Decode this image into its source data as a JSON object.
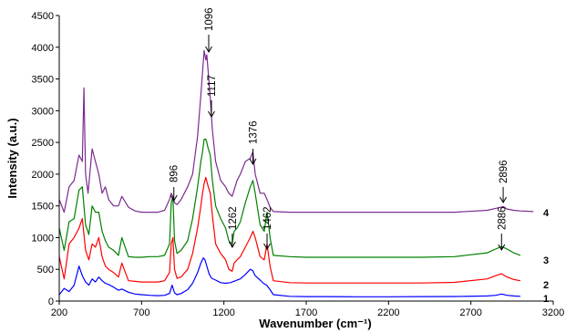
{
  "chart_data": {
    "type": "line",
    "title": "",
    "xlabel": "Wavenumber (cm⁻¹)",
    "ylabel": "Intensity (a.u.)",
    "xlim": [
      200,
      3200
    ],
    "ylim": [
      0,
      4500
    ],
    "xticks": [
      "200",
      "700",
      "1200",
      "1700",
      "2200",
      "2700",
      "3200"
    ],
    "yticks": [
      "0",
      "500",
      "1000",
      "1500",
      "2000",
      "2500",
      "3000",
      "3500",
      "4000",
      "4500"
    ],
    "grid": false,
    "legend": "none",
    "series": [
      {
        "name": "1",
        "color": "#0000ff",
        "x": [
          200,
          230,
          260,
          290,
          320,
          340,
          360,
          380,
          400,
          420,
          440,
          460,
          480,
          500,
          530,
          560,
          580,
          620,
          660,
          700,
          750,
          800,
          840,
          870,
          885,
          900,
          915,
          940,
          980,
          1010,
          1040,
          1060,
          1075,
          1085,
          1095,
          1110,
          1125,
          1150,
          1180,
          1210,
          1240,
          1260,
          1280,
          1300,
          1330,
          1360,
          1375,
          1390,
          1420,
          1440,
          1460,
          1480,
          1500,
          1600,
          1700,
          1800,
          2000,
          2200,
          2400,
          2600,
          2800,
          2850,
          2886,
          2920,
          2960,
          3000
        ],
        "y": [
          100,
          200,
          150,
          250,
          550,
          400,
          300,
          250,
          350,
          300,
          380,
          320,
          280,
          260,
          220,
          170,
          190,
          140,
          110,
          100,
          90,
          85,
          90,
          120,
          250,
          130,
          100,
          120,
          180,
          280,
          450,
          600,
          680,
          650,
          560,
          430,
          360,
          330,
          290,
          280,
          290,
          310,
          330,
          350,
          420,
          500,
          480,
          400,
          330,
          280,
          250,
          180,
          100,
          75,
          70,
          70,
          68,
          68,
          70,
          72,
          80,
          90,
          110,
          90,
          80,
          75
        ]
      },
      {
        "name": "2",
        "color": "#ff0000",
        "x": [
          200,
          230,
          260,
          290,
          320,
          340,
          360,
          380,
          400,
          420,
          440,
          460,
          480,
          500,
          530,
          560,
          580,
          620,
          660,
          700,
          750,
          800,
          840,
          870,
          880,
          890,
          900,
          915,
          940,
          980,
          1010,
          1040,
          1060,
          1070,
          1080,
          1090,
          1105,
          1117,
          1130,
          1150,
          1180,
          1210,
          1230,
          1250,
          1262,
          1280,
          1300,
          1330,
          1360,
          1376,
          1390,
          1420,
          1445,
          1462,
          1480,
          1500,
          1600,
          1700,
          1800,
          2000,
          2200,
          2400,
          2600,
          2800,
          2850,
          2886,
          2920,
          2960,
          3000
        ],
        "y": [
          700,
          350,
          900,
          1000,
          1150,
          1300,
          800,
          650,
          900,
          850,
          1000,
          700,
          550,
          500,
          450,
          380,
          600,
          320,
          310,
          300,
          300,
          300,
          320,
          450,
          900,
          1000,
          500,
          360,
          380,
          500,
          750,
          1150,
          1500,
          1700,
          1850,
          1950,
          1800,
          1700,
          1350,
          900,
          750,
          650,
          500,
          470,
          600,
          650,
          700,
          850,
          1000,
          1100,
          1000,
          700,
          650,
          900,
          550,
          320,
          290,
          285,
          285,
          285,
          285,
          285,
          295,
          350,
          400,
          430,
          380,
          340,
          320
        ]
      },
      {
        "name": "3",
        "color": "#008000",
        "x": [
          200,
          230,
          260,
          290,
          320,
          340,
          360,
          380,
          400,
          420,
          440,
          460,
          480,
          500,
          530,
          560,
          580,
          620,
          660,
          700,
          750,
          800,
          840,
          870,
          880,
          890,
          900,
          915,
          940,
          980,
          1010,
          1040,
          1060,
          1070,
          1080,
          1090,
          1096,
          1105,
          1117,
          1130,
          1150,
          1180,
          1210,
          1230,
          1250,
          1262,
          1280,
          1300,
          1330,
          1360,
          1376,
          1390,
          1420,
          1445,
          1462,
          1480,
          1500,
          1600,
          1700,
          1800,
          2000,
          2200,
          2400,
          2600,
          2800,
          2850,
          2886,
          2920,
          2960,
          3000
        ],
        "y": [
          1150,
          800,
          1250,
          1300,
          1750,
          1800,
          1200,
          1050,
          1500,
          1400,
          1400,
          1100,
          950,
          850,
          800,
          720,
          1000,
          700,
          690,
          690,
          700,
          700,
          720,
          900,
          1550,
          1650,
          950,
          750,
          800,
          950,
          1300,
          1800,
          2200,
          2350,
          2550,
          2550,
          2500,
          2400,
          2300,
          1900,
          1500,
          1300,
          1150,
          950,
          900,
          1100,
          1150,
          1250,
          1550,
          1800,
          1900,
          1700,
          1200,
          1100,
          1400,
          1000,
          720,
          700,
          690,
          690,
          690,
          690,
          690,
          700,
          760,
          820,
          860,
          820,
          760,
          720
        ]
      },
      {
        "name": "4",
        "color": "#7b2c8f",
        "x": [
          200,
          230,
          260,
          290,
          320,
          340,
          350,
          360,
          375,
          400,
          420,
          440,
          460,
          480,
          500,
          530,
          560,
          580,
          620,
          660,
          700,
          750,
          800,
          840,
          870,
          880,
          890,
          900,
          915,
          940,
          980,
          1010,
          1040,
          1060,
          1070,
          1080,
          1090,
          1096,
          1105,
          1117,
          1130,
          1150,
          1180,
          1210,
          1230,
          1250,
          1262,
          1280,
          1300,
          1330,
          1360,
          1376,
          1390,
          1420,
          1445,
          1462,
          1480,
          1500,
          1600,
          1700,
          1800,
          2000,
          2200,
          2400,
          2600,
          2800,
          2850,
          2896,
          2920,
          2960,
          3000,
          3080
        ],
        "y": [
          1600,
          1400,
          1800,
          1900,
          2300,
          2200,
          3360,
          2000,
          1700,
          2400,
          2200,
          2000,
          1700,
          1800,
          1600,
          1500,
          1500,
          1650,
          1480,
          1420,
          1400,
          1400,
          1400,
          1430,
          1600,
          1700,
          1650,
          1550,
          1520,
          1600,
          1800,
          2000,
          2600,
          3250,
          3600,
          3950,
          3800,
          3880,
          3600,
          3200,
          2700,
          2200,
          1900,
          1800,
          1700,
          1650,
          1750,
          1900,
          2000,
          2200,
          2250,
          2350,
          2000,
          1700,
          1700,
          1600,
          1480,
          1410,
          1400,
          1400,
          1400,
          1400,
          1400,
          1400,
          1400,
          1430,
          1460,
          1490,
          1450,
          1430,
          1420,
          1410
        ]
      }
    ],
    "annotations": [
      {
        "text": "896",
        "x": 896
      },
      {
        "text": "1096",
        "x": 1096
      },
      {
        "text": "1117",
        "x": 1117
      },
      {
        "text": "1262",
        "x": 1262
      },
      {
        "text": "1376",
        "x": 1376
      },
      {
        "text": "1462",
        "x": 1462
      },
      {
        "text": "2896",
        "x": 2896
      },
      {
        "text": "2886",
        "x": 2886
      }
    ],
    "series_labels": [
      "1",
      "2",
      "3",
      "4"
    ]
  }
}
